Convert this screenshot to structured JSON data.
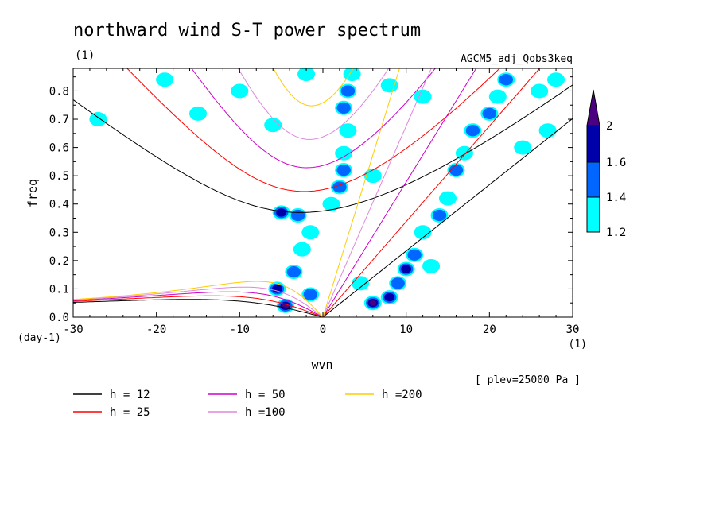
{
  "chart_data": {
    "type": "heatmap",
    "title": "northward wind S-T power spectrum",
    "subtitle_left": "(1)",
    "subtitle_right": "AGCM5_adj_Qobs3keq",
    "xlabel": "wvn",
    "ylabel": "freq",
    "x_unit_label": "(1)",
    "y_unit_label": "(day-1)",
    "xlim": [
      -30,
      30
    ],
    "ylim": [
      0,
      0.88
    ],
    "x_ticks": [
      -30,
      -20,
      -10,
      0,
      10,
      20,
      30
    ],
    "x_tick_labels": [
      "-30",
      "-20",
      "-10",
      "0",
      "10",
      "20",
      "30"
    ],
    "y_ticks": [
      0,
      0.1,
      0.2,
      0.3,
      0.4,
      0.5,
      0.6,
      0.7,
      0.8
    ],
    "y_tick_labels": [
      "0.0",
      "0.1",
      "0.2",
      "0.3",
      "0.4",
      "0.5",
      "0.6",
      "0.7",
      "0.8"
    ],
    "annotation": "[ plev=25000 Pa ]",
    "colorbar": {
      "levels": [
        1.2,
        1.4,
        1.6,
        2
      ],
      "labels": [
        "1.2",
        "1.4",
        "1.6",
        "2"
      ],
      "colors": [
        "#00ffff",
        "#0066ff",
        "#0000aa",
        "#4b0082"
      ]
    },
    "dispersion_curves": [
      {
        "label": "h = 12",
        "h": 12,
        "color": "#000000"
      },
      {
        "label": "h = 25",
        "h": 25,
        "color": "#ff0000"
      },
      {
        "label": "h = 50",
        "h": 50,
        "color": "#cc00cc"
      },
      {
        "label": "h =100",
        "h": 100,
        "color": "#dd88dd"
      },
      {
        "label": "h =200",
        "h": 200,
        "color": "#ffcc00"
      }
    ],
    "contour_patches": [
      {
        "x": -4.5,
        "y": 0.04,
        "level": 4
      },
      {
        "x": -5.5,
        "y": 0.1,
        "level": 3
      },
      {
        "x": -3.5,
        "y": 0.16,
        "level": 2
      },
      {
        "x": -2.5,
        "y": 0.24,
        "level": 1
      },
      {
        "x": -1.5,
        "y": 0.3,
        "level": 1
      },
      {
        "x": -5,
        "y": 0.37,
        "level": 3
      },
      {
        "x": -3,
        "y": 0.36,
        "level": 2
      },
      {
        "x": 1,
        "y": 0.4,
        "level": 1
      },
      {
        "x": 2,
        "y": 0.46,
        "level": 2
      },
      {
        "x": 2.5,
        "y": 0.52,
        "level": 2
      },
      {
        "x": 2.5,
        "y": 0.58,
        "level": 1
      },
      {
        "x": 3,
        "y": 0.66,
        "level": 1
      },
      {
        "x": 2.5,
        "y": 0.74,
        "level": 2
      },
      {
        "x": 3,
        "y": 0.8,
        "level": 2
      },
      {
        "x": 3.5,
        "y": 0.86,
        "level": 1
      },
      {
        "x": 6,
        "y": 0.05,
        "level": 4
      },
      {
        "x": 8,
        "y": 0.07,
        "level": 3
      },
      {
        "x": 9,
        "y": 0.12,
        "level": 2
      },
      {
        "x": 10,
        "y": 0.17,
        "level": 3
      },
      {
        "x": 11,
        "y": 0.22,
        "level": 2
      },
      {
        "x": 12,
        "y": 0.3,
        "level": 1
      },
      {
        "x": 14,
        "y": 0.36,
        "level": 2
      },
      {
        "x": 15,
        "y": 0.42,
        "level": 1
      },
      {
        "x": 16,
        "y": 0.52,
        "level": 2
      },
      {
        "x": 17,
        "y": 0.58,
        "level": 1
      },
      {
        "x": 18,
        "y": 0.66,
        "level": 2
      },
      {
        "x": 20,
        "y": 0.72,
        "level": 2
      },
      {
        "x": 21,
        "y": 0.78,
        "level": 1
      },
      {
        "x": 22,
        "y": 0.84,
        "level": 2
      },
      {
        "x": 26,
        "y": 0.8,
        "level": 1
      },
      {
        "x": 28,
        "y": 0.84,
        "level": 1
      },
      {
        "x": -19,
        "y": 0.84,
        "level": 1
      },
      {
        "x": -10,
        "y": 0.8,
        "level": 1
      },
      {
        "x": -2,
        "y": 0.86,
        "level": 1
      },
      {
        "x": -6,
        "y": 0.68,
        "level": 1
      },
      {
        "x": 6,
        "y": 0.5,
        "level": 1
      },
      {
        "x": 8,
        "y": 0.82,
        "level": 1
      },
      {
        "x": 12,
        "y": 0.78,
        "level": 1
      },
      {
        "x": -27,
        "y": 0.7,
        "level": 1
      },
      {
        "x": -15,
        "y": 0.72,
        "level": 1
      },
      {
        "x": 24,
        "y": 0.6,
        "level": 1
      },
      {
        "x": 27,
        "y": 0.66,
        "level": 1
      },
      {
        "x": -1.5,
        "y": 0.08,
        "level": 2
      },
      {
        "x": 4.5,
        "y": 0.12,
        "level": 1
      },
      {
        "x": 13,
        "y": 0.18,
        "level": 1
      }
    ]
  }
}
